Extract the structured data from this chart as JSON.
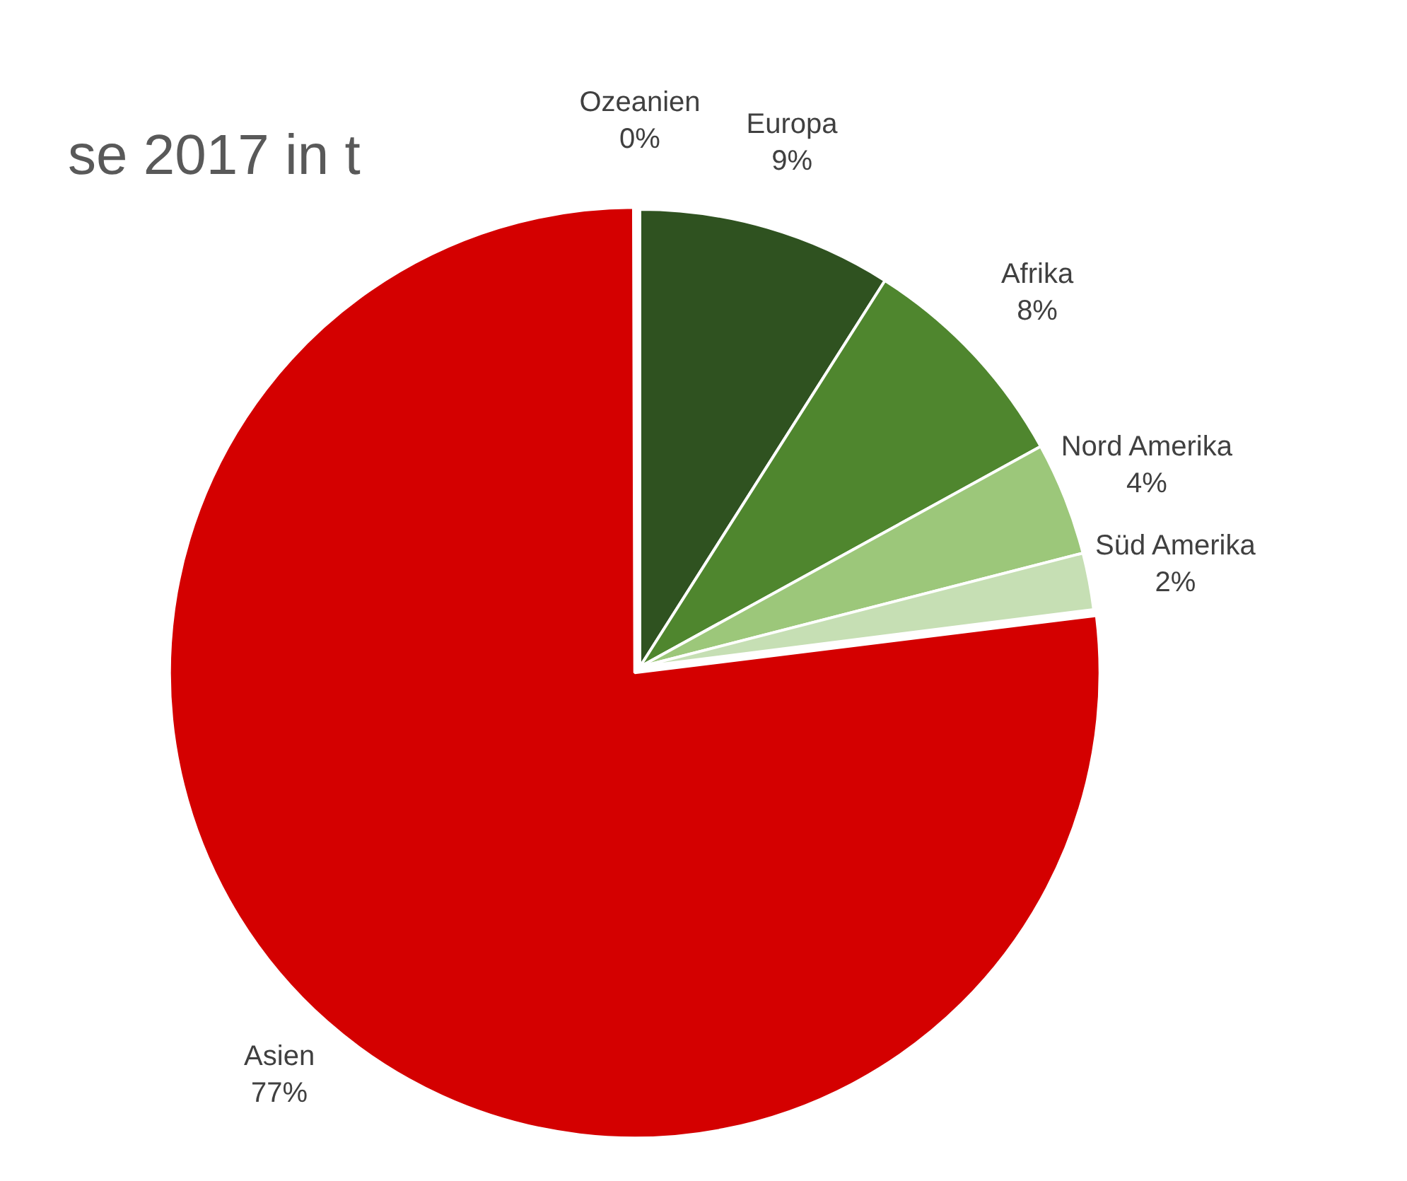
{
  "chart_data": {
    "type": "pie",
    "title": "se 2017 in t",
    "categories": [
      "Ozeanien",
      "Europa",
      "Afrika",
      "Nord Amerika",
      "Süd Amerika",
      "Asien"
    ],
    "values": [
      0,
      9,
      8,
      4,
      2,
      77
    ],
    "colors": [
      "#1f3a14",
      "#2f5220",
      "#4f862e",
      "#9cc77a",
      "#c6dfb4",
      "#d40000"
    ],
    "value_labels": [
      "0%",
      "9%",
      "8%",
      "4%",
      "2%",
      "77%"
    ],
    "legend": false
  }
}
